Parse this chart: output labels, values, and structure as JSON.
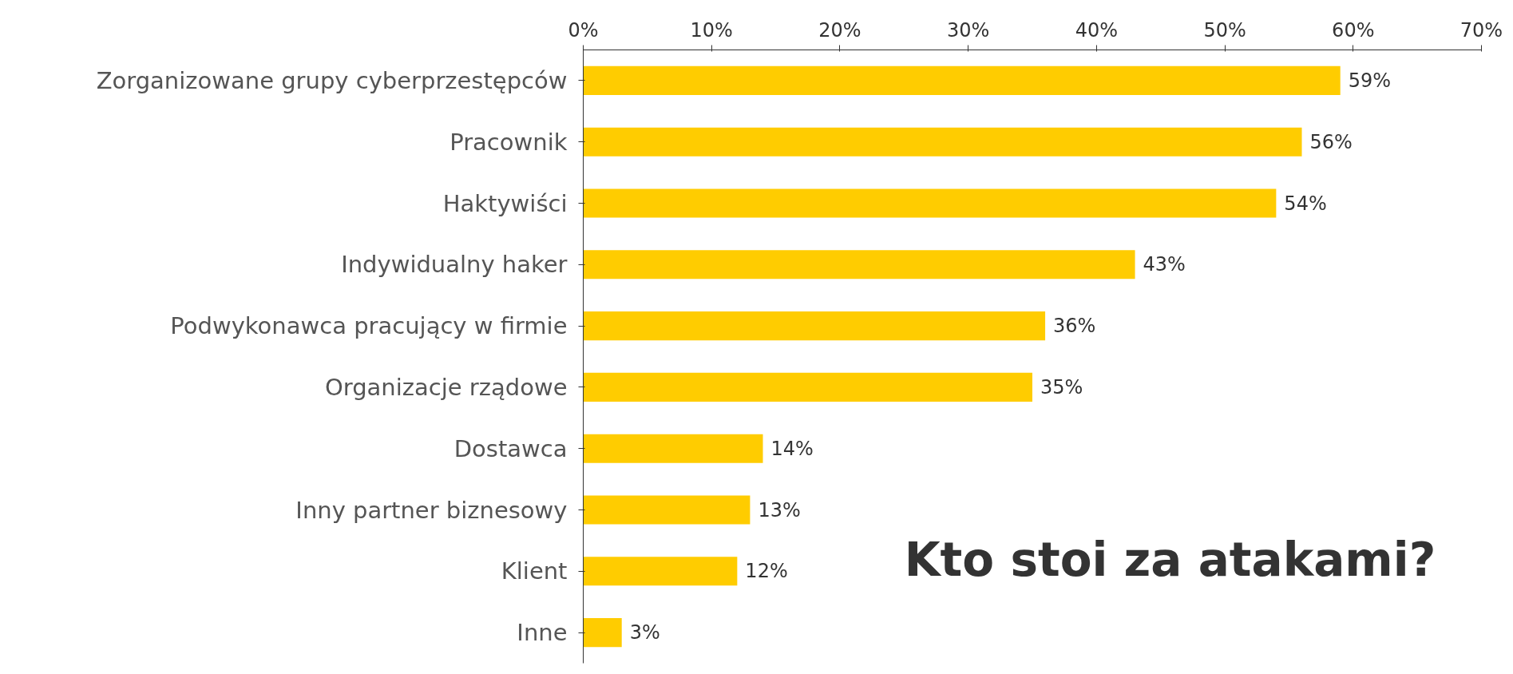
{
  "chart_data": {
    "type": "bar",
    "orientation": "horizontal",
    "title": "Kto stoi za atakami?",
    "categories": [
      "Zorganizowane grupy cyberprzestępców",
      "Pracownik",
      "Haktywiści",
      "Indywidualny haker",
      "Podwykonawca pracujący w firmie",
      "Organizacje rządowe",
      "Dostawca",
      "Inny partner biznesowy",
      "Klient",
      "Inne"
    ],
    "values": [
      59,
      56,
      54,
      43,
      36,
      35,
      14,
      13,
      12,
      3
    ],
    "value_labels": [
      "59%",
      "56%",
      "54%",
      "43%",
      "36%",
      "35%",
      "14%",
      "13%",
      "12%",
      "3%"
    ],
    "color": "#ffcc00",
    "xlim": [
      0,
      70
    ],
    "xticks": [
      {
        "value": 0,
        "label": "0%"
      },
      {
        "value": 10,
        "label": "10%"
      },
      {
        "value": 20,
        "label": "20%"
      },
      {
        "value": 30,
        "label": "30%"
      },
      {
        "value": 40,
        "label": "40%"
      },
      {
        "value": 50,
        "label": "50%"
      },
      {
        "value": 60,
        "label": "60%"
      },
      {
        "value": 70,
        "label": "70%"
      }
    ]
  }
}
